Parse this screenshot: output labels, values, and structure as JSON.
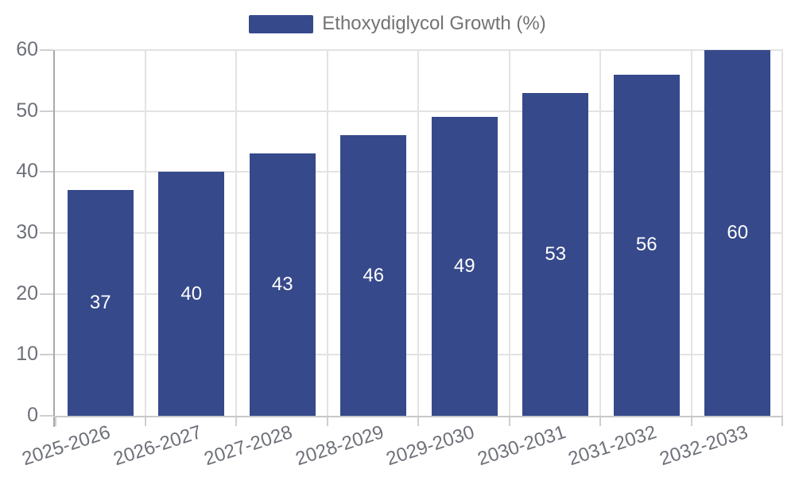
{
  "chart_data": {
    "type": "bar",
    "title": "",
    "legend": "Ethoxydiglycol Growth (%)",
    "legend_position": "top-center",
    "categories": [
      "2025-2026",
      "2026-2027",
      "2027-2028",
      "2028-2029",
      "2029-2030",
      "2030-2031",
      "2031-2032",
      "2032-2033"
    ],
    "values": [
      37,
      40,
      43,
      46,
      49,
      53,
      56,
      60
    ],
    "xlabel": "",
    "ylabel": "",
    "ylim": [
      0,
      60
    ],
    "yticks": [
      0,
      10,
      20,
      30,
      40,
      50,
      60
    ],
    "grid": "on",
    "colors": {
      "bar": "#36498B",
      "value_label": "#FFFFFF",
      "axis_text": "#6E7079",
      "legend_text": "#737373",
      "grid_line": "#E3E3E3",
      "y_axis_line": "#A8A8A8",
      "x_axis_line": "#C8C8C8",
      "tick_line": "#CFCFCF",
      "background": "#FFFFFF"
    }
  }
}
